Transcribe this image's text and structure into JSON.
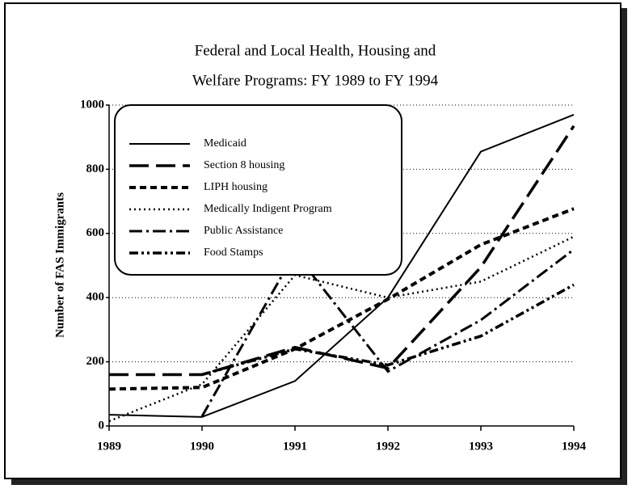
{
  "chart_data": {
    "type": "line",
    "title": [
      "Federal and Local Health, Housing and",
      "Welfare Programs:  FY 1989 to FY 1994"
    ],
    "y_label": "Number of FAS Immigrants",
    "x": [
      1989,
      1990,
      1991,
      1992,
      1993,
      1994
    ],
    "xlim": [
      1989,
      1994
    ],
    "xticks": [
      1989,
      1990,
      1991,
      1992,
      1993,
      1994
    ],
    "ylim": [
      0,
      1000
    ],
    "yticks": [
      0,
      200,
      400,
      600,
      800,
      1000
    ],
    "grid": true,
    "series": [
      {
        "name": "Medicaid",
        "color": "#000000",
        "values": [
          35,
          28,
          140,
          400,
          855,
          970
        ]
      },
      {
        "name": "Section 8 housing",
        "color": "#000000",
        "values": [
          160,
          160,
          245,
          180,
          495,
          935
        ]
      },
      {
        "name": "LIPH housing",
        "color": "#000000",
        "values": [
          115,
          120,
          240,
          395,
          565,
          677
        ]
      },
      {
        "name": "Medically Indigent Program",
        "color": "#000000",
        "values": [
          15,
          130,
          470,
          400,
          450,
          590
        ]
      },
      {
        "name": "Public Assistance",
        "color": "#000000",
        "values": [
          null,
          30,
          540,
          170,
          330,
          550
        ]
      },
      {
        "name": "Food Stamps",
        "color": "#000000",
        "values": [
          null,
          160,
          240,
          190,
          280,
          440
        ]
      }
    ]
  }
}
